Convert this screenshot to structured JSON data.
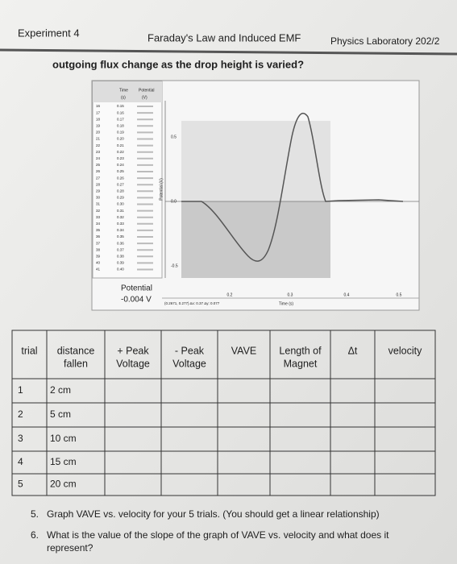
{
  "header": {
    "left": "Experiment 4",
    "center": "Faraday's Law and Induced EMF",
    "right": "Physics Laboratory 202/2"
  },
  "prompt": "outgoing flux change as the drop height is varied?",
  "screenshot": {
    "table_header": [
      "Time",
      "Potential"
    ],
    "units": [
      "(s)",
      "(V)"
    ],
    "rows": [
      {
        "n": "16",
        "time": "0.15"
      },
      {
        "n": "17",
        "time": "0.16"
      },
      {
        "n": "18",
        "time": "0.17"
      },
      {
        "n": "19",
        "time": "0.18"
      },
      {
        "n": "20",
        "time": "0.19"
      },
      {
        "n": "21",
        "time": "0.20"
      },
      {
        "n": "22",
        "time": "0.21"
      },
      {
        "n": "23",
        "time": "0.22"
      },
      {
        "n": "24",
        "time": "0.23"
      },
      {
        "n": "25",
        "time": "0.24"
      },
      {
        "n": "26",
        "time": "0.25"
      },
      {
        "n": "27",
        "time": "0.26"
      },
      {
        "n": "28",
        "time": "0.27"
      },
      {
        "n": "29",
        "time": "0.28"
      },
      {
        "n": "30",
        "time": "0.29"
      },
      {
        "n": "31",
        "time": "0.30"
      },
      {
        "n": "32",
        "time": "0.31"
      },
      {
        "n": "33",
        "time": "0.32"
      },
      {
        "n": "34",
        "time": "0.33"
      },
      {
        "n": "35",
        "time": "0.34"
      },
      {
        "n": "36",
        "time": "0.35"
      },
      {
        "n": "37",
        "time": "0.36"
      },
      {
        "n": "38",
        "time": "0.37"
      },
      {
        "n": "39",
        "time": "0.38"
      },
      {
        "n": "40",
        "time": "0.39"
      },
      {
        "n": "41",
        "time": "0.40"
      }
    ],
    "readout_label": "Potential",
    "readout_value": "-0.004 V",
    "y_axis_label": "Potential (V)",
    "y_ticks": [
      "0.5",
      "0.0",
      "-0.5"
    ],
    "x_ticks": [
      "0.2",
      "0.3",
      "0.4",
      "0.5"
    ],
    "x_axis_label": "Time (s)",
    "status": "(0.2671, 0.277) Δx: 0.37 Δy: 0.077"
  },
  "table": {
    "headers": [
      [
        "trial"
      ],
      [
        "distance",
        "fallen"
      ],
      [
        "+ Peak",
        "Voltage"
      ],
      [
        "- Peak",
        "Voltage"
      ],
      [
        "VAVE"
      ],
      [
        "Length of",
        "Magnet"
      ],
      [
        "Δt"
      ],
      [
        "velocity"
      ]
    ],
    "rows": [
      [
        "1",
        "2 cm"
      ],
      [
        "2",
        "5 cm"
      ],
      [
        "3",
        "10 cm"
      ],
      [
        "4",
        "15 cm"
      ],
      [
        "5",
        "20 cm"
      ]
    ]
  },
  "questions": [
    {
      "number": "5.",
      "lines": [
        "Graph VAVE vs. velocity for your 5 trials. (You should get a linear relationship)"
      ]
    },
    {
      "number": "6.",
      "lines": [
        "What is the value of the slope of the graph of VAVE vs. velocity and what does it",
        "represent?"
      ]
    }
  ]
}
